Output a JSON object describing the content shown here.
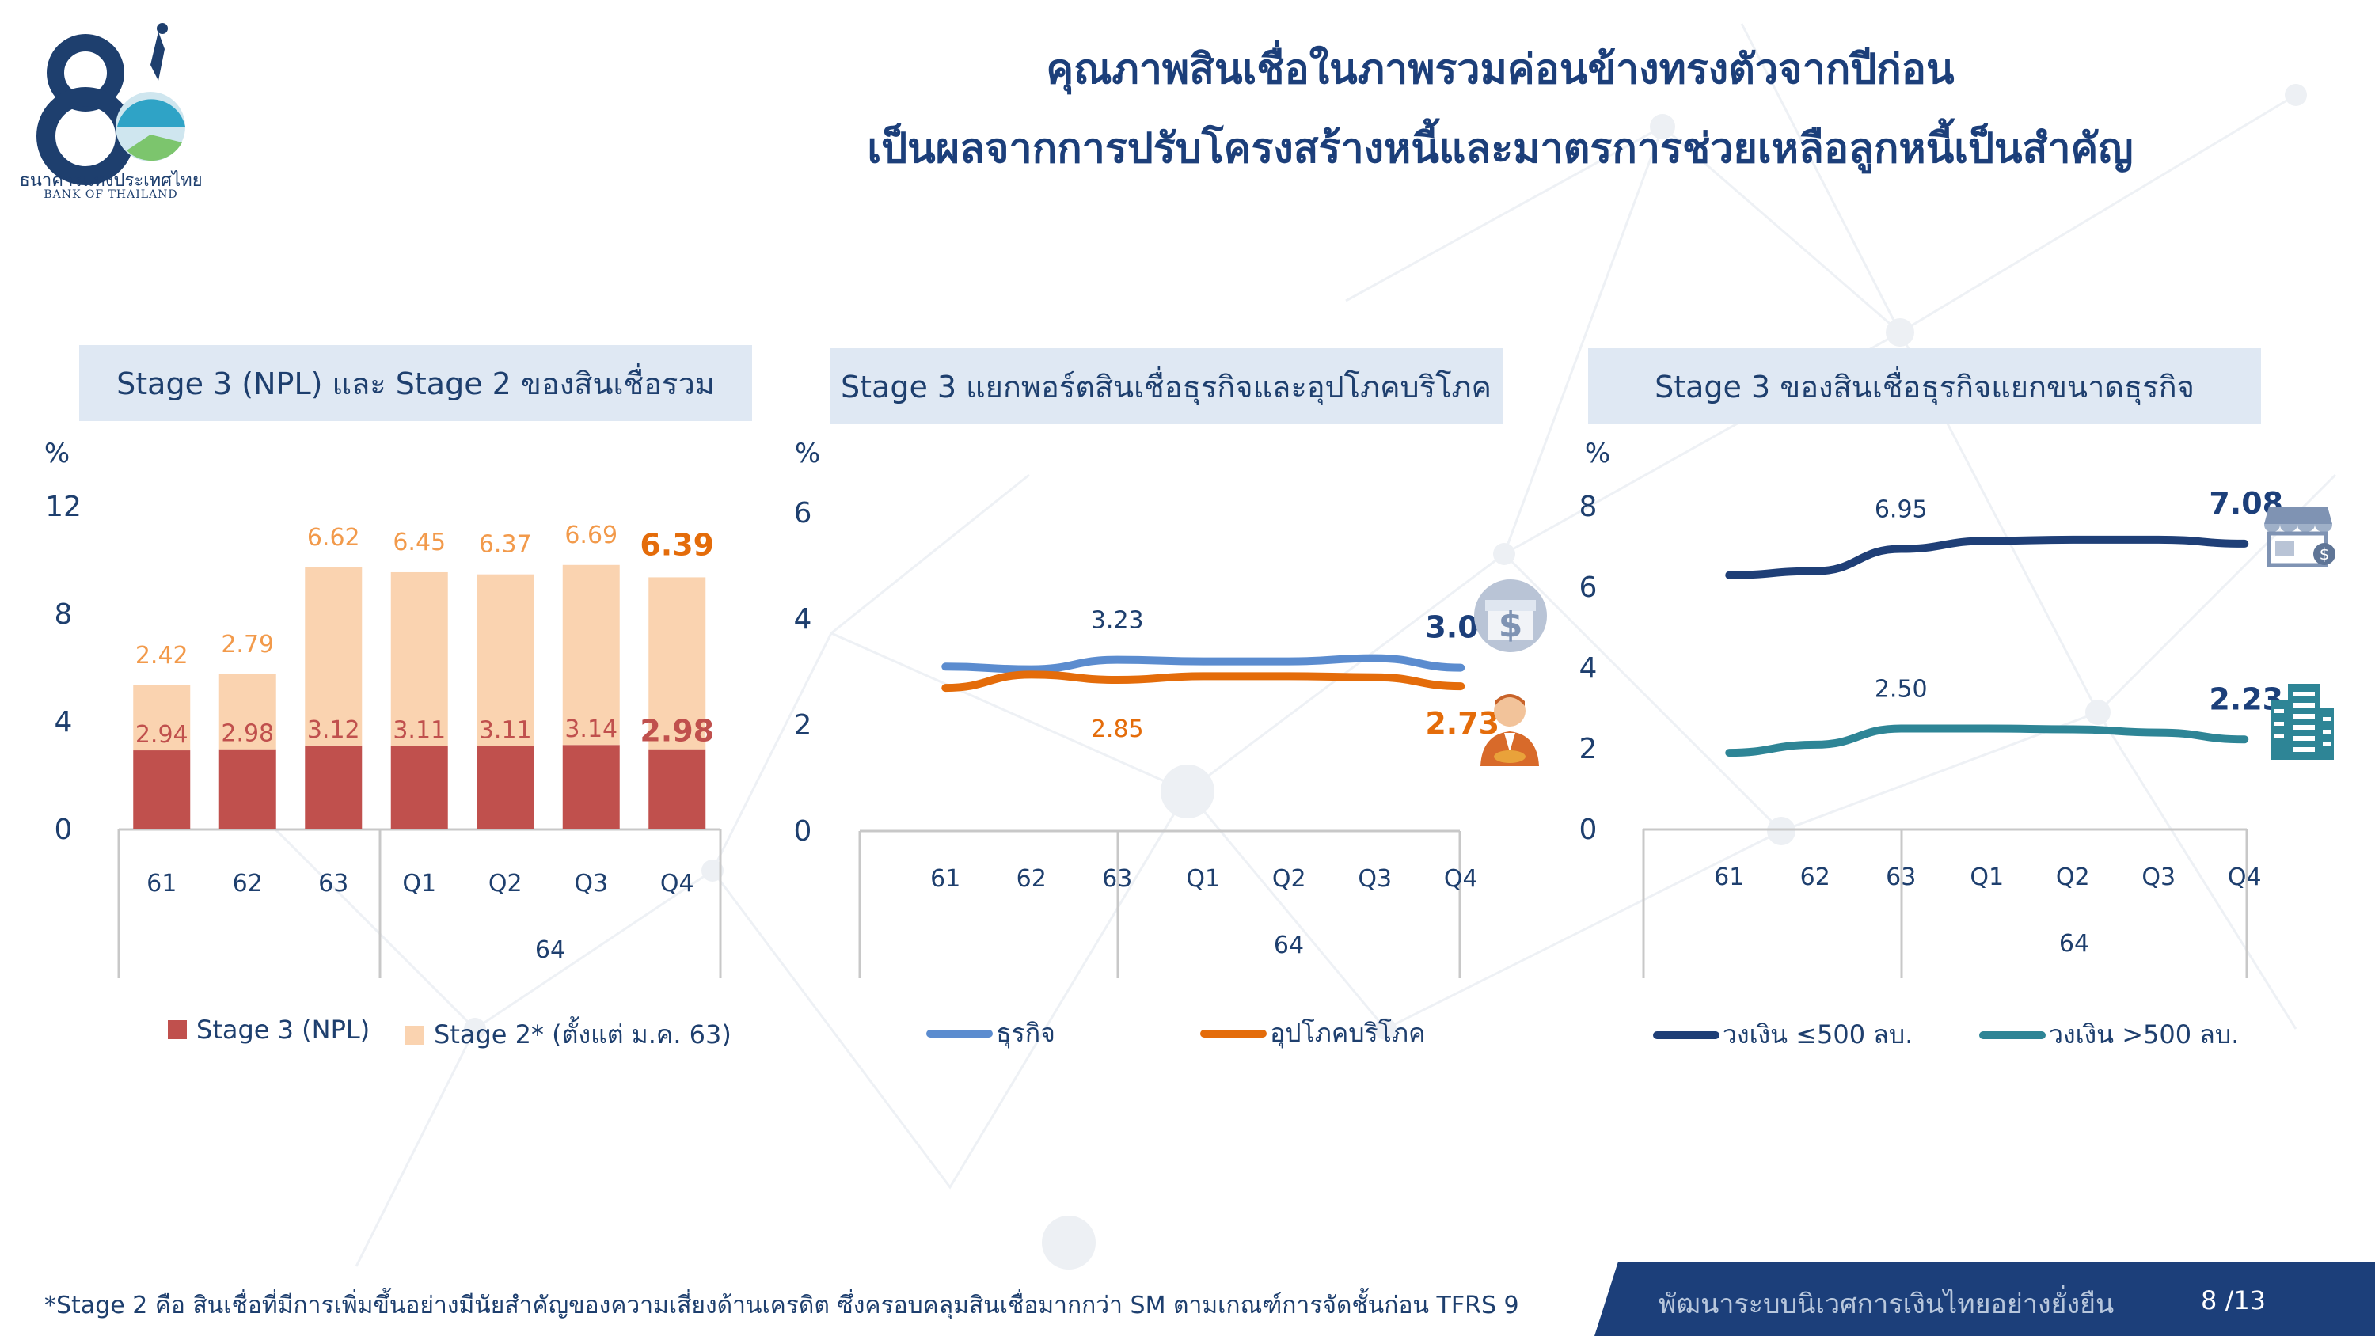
{
  "header": {
    "title_line1": "คุณภาพสินเชื่อในภาพรวมค่อนข้างทรงตัวจากปีก่อน",
    "title_line2": "เป็นผลจากการปรับโครงสร้างหนี้และมาตรการช่วยเหลือลูกหนี้เป็นสำคัญ",
    "logo_text_th": "ธนาคารแห่งประเทศไทย",
    "logo_text_en": "BANK OF THAILAND",
    "logo_number": "80"
  },
  "colors": {
    "navy": "#1c3f7a",
    "npl_red": "#c0504d",
    "stage2_peach": "#fad3b0",
    "stage2_label": "#f29a4b",
    "business_blue": "#5b8ccf",
    "consumer_orange": "#e46c0a",
    "small_navy": "#1f3f77",
    "large_teal": "#2e8596",
    "panel_bg": "#dfe8f3"
  },
  "icons": [
    "bank-logo-icon",
    "shop-dollar-icon",
    "consumer-person-icon",
    "storefront-icon",
    "building-icon"
  ],
  "chart_data": [
    {
      "type": "bar",
      "stacked": true,
      "title": "Stage 3 (NPL) และ Stage 2 ของสินเชื่อรวม",
      "yunit": "%",
      "ylim": [
        0,
        12
      ],
      "yticks": [
        "0",
        "4",
        "8",
        "12"
      ],
      "categories": [
        "61",
        "62",
        "63",
        "Q1",
        "Q2",
        "Q3",
        "Q4"
      ],
      "group_label": "64",
      "series": [
        {
          "name": "Stage 3 (NPL)",
          "values": [
            2.94,
            2.98,
            3.12,
            3.11,
            3.11,
            3.14,
            2.98
          ],
          "labels": [
            "2.94",
            "2.98",
            "3.12",
            "3.11",
            "3.11",
            "3.14",
            "2.98"
          ]
        },
        {
          "name": "Stage 2* (ตั้งแต่ ม.ค. 63)",
          "values": [
            2.42,
            2.79,
            6.62,
            6.45,
            6.37,
            6.69,
            6.39
          ],
          "labels": [
            "2.42",
            "2.79",
            "6.62",
            "6.45",
            "6.37",
            "6.69",
            "6.39"
          ]
        }
      ],
      "legend_position": "bottom"
    },
    {
      "type": "line",
      "title": "Stage 3 แยกพอร์ตสินเชื่อธุรกิจและอุปโภคบริโภค",
      "yunit": "%",
      "ylim": [
        0,
        6
      ],
      "yticks": [
        "0",
        "2",
        "4",
        "6"
      ],
      "categories": [
        "61",
        "62",
        "63",
        "Q1",
        "Q2",
        "Q3",
        "Q4"
      ],
      "group_label": "64",
      "series": [
        {
          "name": "ธุรกิจ",
          "values": [
            3.1,
            3.05,
            3.23,
            3.2,
            3.2,
            3.26,
            3.08
          ]
        },
        {
          "name": "อุปโภคบริโภค",
          "values": [
            2.7,
            2.95,
            2.85,
            2.92,
            2.92,
            2.9,
            2.73
          ]
        }
      ],
      "data_labels": [
        {
          "series": 0,
          "index": 2,
          "text": "3.23"
        },
        {
          "series": 0,
          "index": 6,
          "text": "3.08"
        },
        {
          "series": 1,
          "index": 2,
          "text": "2.85"
        },
        {
          "series": 1,
          "index": 6,
          "text": "2.73"
        }
      ],
      "legend_position": "bottom"
    },
    {
      "type": "line",
      "title": "Stage 3 ของสินเชื่อธุรกิจแยกขนาดธุรกิจ",
      "yunit": "%",
      "ylim": [
        0,
        8
      ],
      "yticks": [
        "0",
        "2",
        "4",
        "6",
        "8"
      ],
      "categories": [
        "61",
        "62",
        "63",
        "Q1",
        "Q2",
        "Q3",
        "Q4"
      ],
      "group_label": "64",
      "series": [
        {
          "name": "วงเงิน ≤500 ลบ.",
          "values": [
            6.3,
            6.4,
            6.95,
            7.15,
            7.18,
            7.18,
            7.08
          ]
        },
        {
          "name": "วงเงิน >500 ลบ.",
          "values": [
            1.9,
            2.1,
            2.5,
            2.5,
            2.48,
            2.4,
            2.23
          ]
        }
      ],
      "data_labels": [
        {
          "series": 0,
          "index": 2,
          "text": "6.95"
        },
        {
          "series": 0,
          "index": 6,
          "text": "7.08"
        },
        {
          "series": 1,
          "index": 2,
          "text": "2.50"
        },
        {
          "series": 1,
          "index": 6,
          "text": "2.23"
        }
      ],
      "legend_position": "bottom"
    }
  ],
  "footer": {
    "footnote": "*Stage 2 คือ สินเชื่อที่มีการเพิ่มขึ้นอย่างมีนัยสำคัญของความเสี่ยงด้านเครดิต ซึ่งครอบคลุมสินเชื่อมากกว่า SM ตามเกณฑ์การจัดชั้นก่อน TFRS 9",
    "slogan": "พัฒนาระบบนิเวศการเงินไทยอย่างยั่งยืน",
    "page": "8 /13"
  }
}
